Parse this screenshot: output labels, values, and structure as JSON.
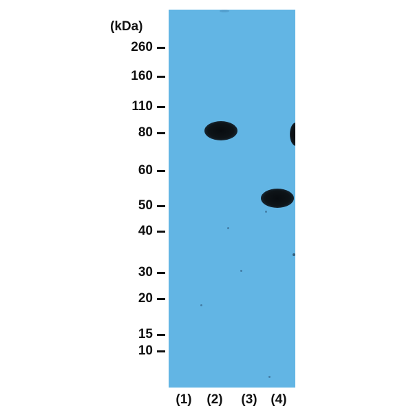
{
  "unit_label": "(kDa)",
  "markers": [
    {
      "label": "260",
      "kda": 260
    },
    {
      "label": "160",
      "kda": 160
    },
    {
      "label": "110",
      "kda": 110
    },
    {
      "label": "80",
      "kda": 80
    },
    {
      "label": "60",
      "kda": 60
    },
    {
      "label": "50",
      "kda": 50
    },
    {
      "label": "40",
      "kda": 40
    },
    {
      "label": "30",
      "kda": 30
    },
    {
      "label": "20",
      "kda": 20
    },
    {
      "label": "15",
      "kda": 15
    },
    {
      "label": "10",
      "kda": 10
    }
  ],
  "lanes": [
    {
      "label": "(1)"
    },
    {
      "label": "(2)"
    },
    {
      "label": "(3)"
    },
    {
      "label": "(4)"
    }
  ],
  "colors": {
    "membrane": "#62b5e4",
    "band": "#0e1418",
    "text": "#111111"
  }
}
